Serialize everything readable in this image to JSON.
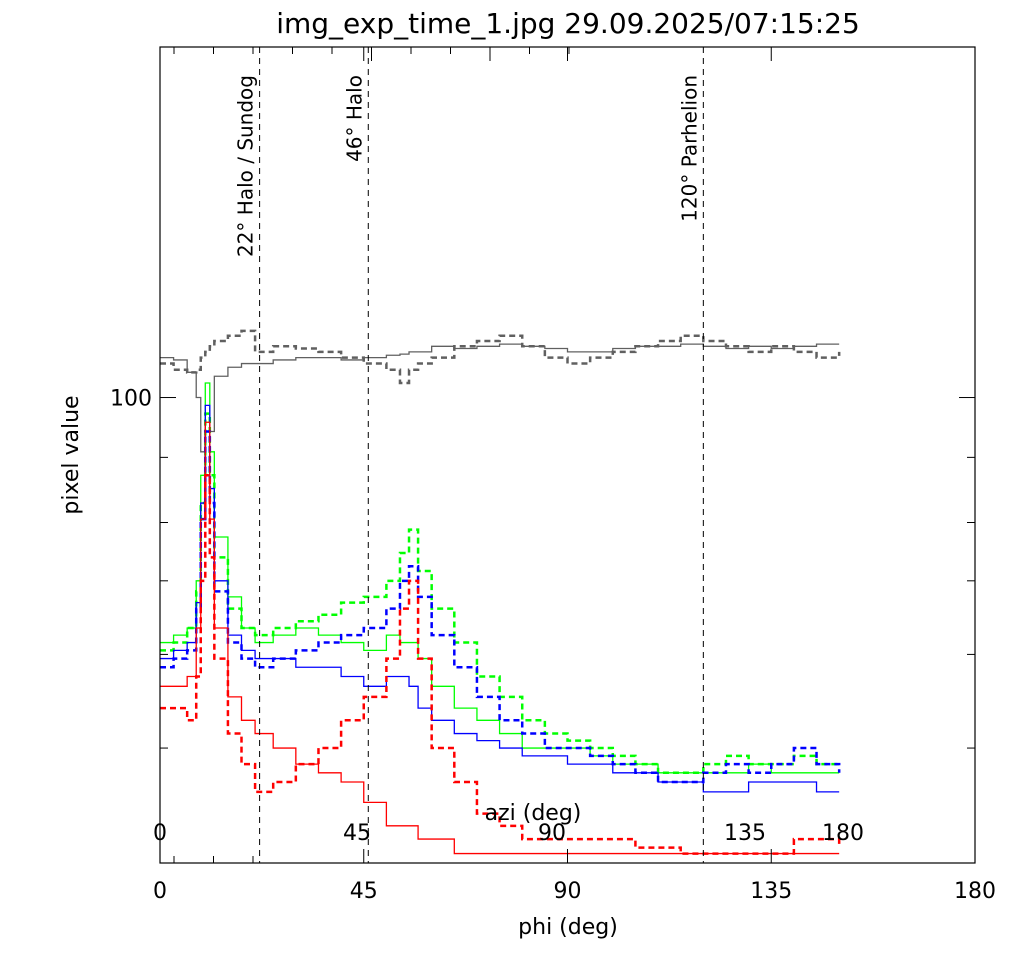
{
  "chart_data": {
    "type": "line",
    "title": "img_exp_time_1.jpg  29.09.2025/07:15:25",
    "xlabel": "phi (deg)",
    "ylabel": "pixel value",
    "xlim": [
      0,
      180
    ],
    "ylim": [
      4.7,
      1000
    ],
    "yscale": "log",
    "x_ticks": [
      "0",
      "45",
      "90",
      "135",
      "180"
    ],
    "x_tick_values": [
      0,
      45,
      90,
      135,
      180
    ],
    "y_tick_labels": [
      "100"
    ],
    "y_tick_values": [
      100
    ],
    "y_minor_tick_values": [
      10,
      18.5,
      30,
      44,
      67.5,
      1000
    ],
    "secondary_axis": {
      "label": "azi (deg)",
      "ticks": [
        "0",
        "45",
        "90",
        "135",
        "180"
      ]
    },
    "markers": [
      {
        "x": 22,
        "label": "22° Halo / Sundog"
      },
      {
        "x": 46,
        "label": "46° Halo"
      },
      {
        "x": 120,
        "label": "120° Parhelion"
      }
    ],
    "x": [
      0,
      3,
      6,
      8,
      9,
      10,
      11,
      12,
      15,
      18,
      21,
      25,
      30,
      35,
      40,
      45,
      50,
      53,
      55,
      57,
      60,
      65,
      70,
      75,
      80,
      85,
      90,
      95,
      100,
      105,
      110,
      115,
      120,
      125,
      130,
      135,
      140,
      145,
      150
    ],
    "series": [
      {
        "name": "gray solid",
        "color": "#606060",
        "dash": false,
        "values": [
          130,
          128,
          118,
          100,
          70,
          60,
          80,
          115,
          122,
          125,
          125,
          128,
          130,
          130,
          128,
          130,
          132,
          133,
          135,
          135,
          140,
          138,
          140,
          142,
          140,
          138,
          135,
          135,
          138,
          140,
          140,
          142,
          140,
          138,
          140,
          138,
          140,
          142,
          142
        ]
      },
      {
        "name": "gray dashed",
        "color": "#606060",
        "dash": true,
        "values": [
          125,
          120,
          118,
          120,
          130,
          135,
          140,
          145,
          150,
          155,
          135,
          140,
          138,
          135,
          130,
          125,
          120,
          110,
          120,
          125,
          130,
          140,
          145,
          150,
          140,
          130,
          125,
          130,
          135,
          140,
          145,
          150,
          145,
          140,
          135,
          140,
          135,
          130,
          135
        ]
      },
      {
        "name": "green solid",
        "color": "#00ff00",
        "dash": false,
        "values": [
          20,
          21,
          22,
          30,
          60,
          110,
          70,
          40,
          27,
          22,
          20,
          21,
          22,
          21,
          20,
          19,
          21,
          20,
          20,
          18,
          15,
          13,
          12,
          11,
          10,
          10,
          10,
          9.5,
          9,
          9,
          8.5,
          8.5,
          8.5,
          8.5,
          9,
          8.5,
          8.5,
          8.5,
          8.5
        ]
      },
      {
        "name": "green dashed",
        "color": "#00ff00",
        "dash": true,
        "values": [
          19,
          20,
          22,
          28,
          50,
          90,
          60,
          35,
          25,
          22,
          21,
          22,
          23,
          24,
          26,
          27,
          30,
          36,
          42,
          32,
          25,
          20,
          16,
          14,
          12,
          11,
          10.5,
          10,
          9.5,
          9,
          8.5,
          8.5,
          9,
          9.5,
          9,
          9,
          9.5,
          9,
          9
        ]
      },
      {
        "name": "blue solid",
        "color": "#0000ff",
        "dash": false,
        "values": [
          18,
          19,
          20,
          26,
          50,
          95,
          55,
          30,
          21,
          19,
          18,
          18,
          17,
          17,
          16,
          15,
          16,
          16,
          15,
          13,
          12,
          11,
          10.5,
          10,
          9.5,
          9.5,
          9,
          9,
          8.5,
          8.5,
          8,
          8,
          7.5,
          7.5,
          8,
          8,
          8,
          7.5,
          7.5
        ]
      },
      {
        "name": "blue dashed",
        "color": "#0000ff",
        "dash": true,
        "values": [
          17,
          18,
          19,
          25,
          45,
          80,
          50,
          28,
          20,
          18,
          17,
          18,
          19,
          20,
          21,
          22,
          25,
          30,
          33,
          27,
          21,
          17,
          14,
          12,
          11,
          10,
          10,
          9.5,
          9,
          8.5,
          8,
          8,
          8.5,
          9,
          8.5,
          9,
          10,
          9,
          8.5
        ]
      },
      {
        "name": "red solid",
        "color": "#ff0000",
        "dash": false,
        "values": [
          15,
          15,
          16,
          22,
          45,
          85,
          45,
          22,
          14,
          12,
          11,
          10,
          9,
          8.5,
          8,
          7,
          6,
          6,
          6,
          5.5,
          5.5,
          5,
          5,
          5,
          5,
          5,
          5,
          5,
          5,
          5,
          5,
          5,
          5,
          5,
          5,
          5,
          5,
          5,
          5
        ]
      },
      {
        "name": "red dashed",
        "color": "#ff0000",
        "dash": true,
        "values": [
          13,
          13,
          12,
          16,
          30,
          60,
          35,
          18,
          11,
          9,
          7.5,
          8,
          9,
          10,
          12,
          14,
          18,
          25,
          30,
          18,
          10,
          8,
          6.5,
          6,
          5.5,
          5.5,
          5.5,
          5.5,
          5.5,
          5.2,
          5.2,
          5,
          5,
          5,
          5,
          5,
          5.5,
          5.5,
          5.2
        ]
      }
    ]
  }
}
